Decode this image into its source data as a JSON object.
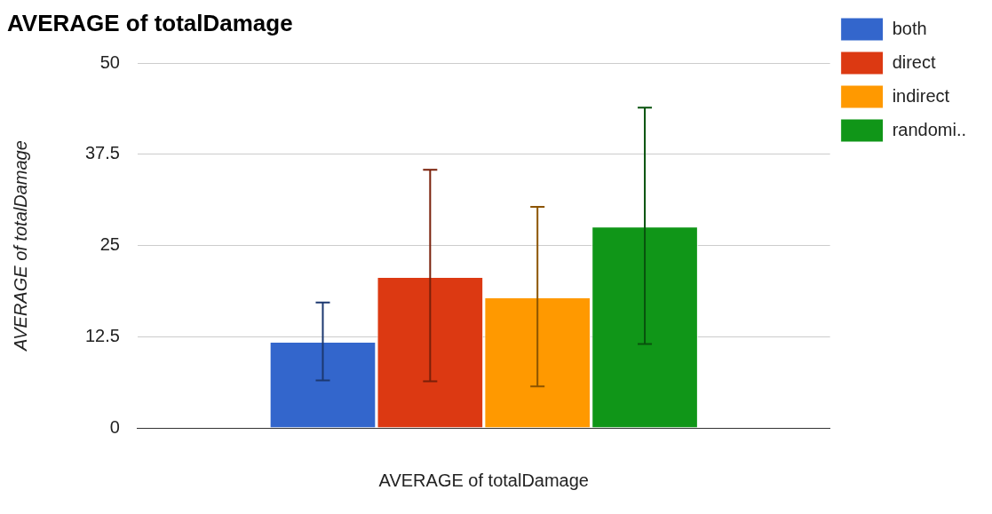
{
  "chart_data": {
    "type": "bar",
    "title": "AVERAGE of totalDamage",
    "ylabel": "AVERAGE of totalDamage",
    "xlabel": "AVERAGE of totalDamage",
    "categories": [
      null
    ],
    "series": [
      {
        "name": "both",
        "color": "#3366cc",
        "values": [
          11.8
        ],
        "errors": [
          [
            6.5,
            17.2
          ]
        ]
      },
      {
        "name": "direct",
        "color": "#dc3912",
        "values": [
          20.7
        ],
        "errors": [
          [
            6.4,
            35.4
          ]
        ]
      },
      {
        "name": "indirect",
        "color": "#ff9900",
        "values": [
          17.9
        ],
        "errors": [
          [
            5.7,
            30.3
          ]
        ]
      },
      {
        "name": "randomi..",
        "color": "#109618",
        "values": [
          27.6
        ],
        "errors": [
          [
            11.5,
            43.9
          ]
        ]
      }
    ],
    "ylim": [
      0,
      50
    ],
    "yticks": [
      0,
      12.5,
      25,
      37.5,
      50
    ],
    "grid": "y",
    "legend": "right"
  }
}
